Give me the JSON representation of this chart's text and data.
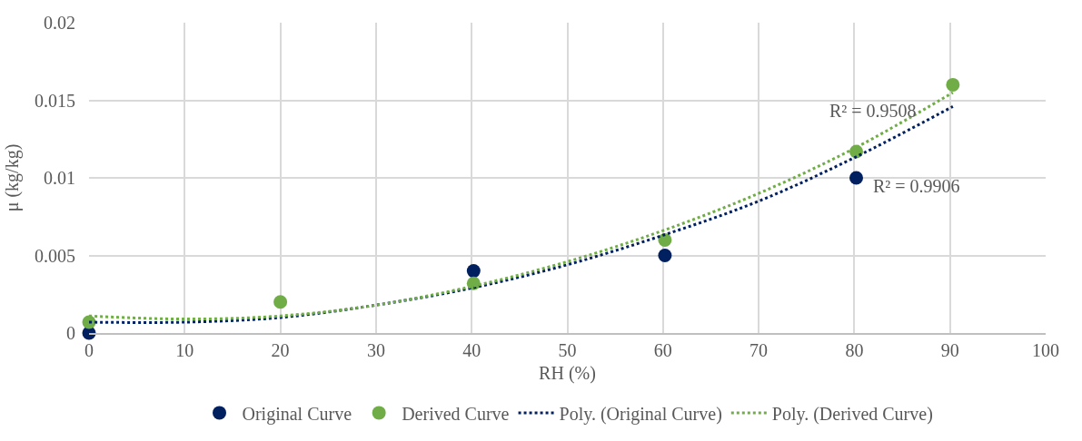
{
  "chart_data": {
    "type": "scatter",
    "xlabel": "RH (%)",
    "ylabel": "μ (kg/kg)",
    "xlim": [
      0,
      100
    ],
    "xticks": [
      0,
      10,
      20,
      30,
      40,
      50,
      60,
      70,
      80,
      90,
      100
    ],
    "ylim": [
      0,
      0.02
    ],
    "yticks": [
      0,
      0.005,
      0.01,
      0.015,
      0.02
    ],
    "grid": true,
    "legend": "bottom",
    "series": [
      {
        "name": "Original Curve",
        "marker": "circle",
        "color": "#002060",
        "x": [
          0,
          40.2,
          60.2,
          80.2
        ],
        "values": [
          0,
          0.004,
          0.005,
          0.01
        ]
      },
      {
        "name": "Derived Curve",
        "marker": "circle",
        "color": "#70ad47",
        "x": [
          0,
          20,
          40.2,
          60.2,
          80.2,
          90.3
        ],
        "values": [
          0.0007,
          0.002,
          0.0032,
          0.006,
          0.0117,
          0.016
        ]
      },
      {
        "name": "Poly. (Original Curve)",
        "type": "line",
        "marker": "none",
        "line_style": "dotted",
        "color": "#002060",
        "x": [
          0,
          10,
          20,
          30,
          40,
          50,
          60,
          70,
          80,
          90.3
        ],
        "values": [
          0.0007,
          0.0007,
          0.001,
          0.0018,
          0.0029,
          0.0044,
          0.0063,
          0.0085,
          0.0113,
          0.0146
        ]
      },
      {
        "name": "Poly. (Derived Curve)",
        "type": "line",
        "marker": "none",
        "line_style": "dotted",
        "color": "#70ad47",
        "x": [
          0,
          10,
          20,
          30,
          40,
          50,
          60,
          70,
          80,
          90.3
        ],
        "values": [
          0.0011,
          0.0009,
          0.0011,
          0.0018,
          0.003,
          0.0046,
          0.0066,
          0.009,
          0.0119,
          0.0155
        ]
      }
    ],
    "annotations": [
      "R² = 0.9508",
      "R² = 0.9906"
    ]
  }
}
